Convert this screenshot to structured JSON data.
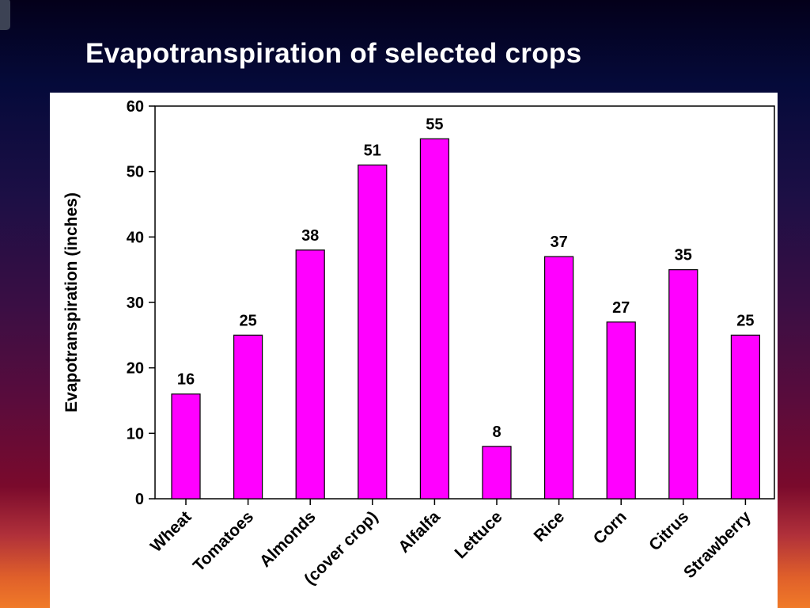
{
  "slide": {
    "title": "Evapotranspiration of selected crops"
  },
  "colors": {
    "bar": "#ff00ff",
    "panel": "#ffffff",
    "title": "#ffffff"
  },
  "chart_data": {
    "type": "bar",
    "title": "",
    "xlabel": "",
    "ylabel": "Evapotranspiration (inches)",
    "ylim": [
      0,
      60
    ],
    "yticks": [
      0,
      10,
      20,
      30,
      40,
      50,
      60
    ],
    "grid": false,
    "categories": [
      "Wheat",
      "Tomatoes",
      "Almonds",
      "(cover crop)",
      "Alfalfa",
      "Lettuce",
      "Rice",
      "Corn",
      "Citrus",
      "Strawberry"
    ],
    "values": [
      16,
      25,
      38,
      51,
      55,
      8,
      37,
      27,
      35,
      25
    ],
    "data_labels": [
      "16",
      "25",
      "38",
      "51",
      "55",
      "8",
      "37",
      "27",
      "35",
      "25"
    ]
  }
}
